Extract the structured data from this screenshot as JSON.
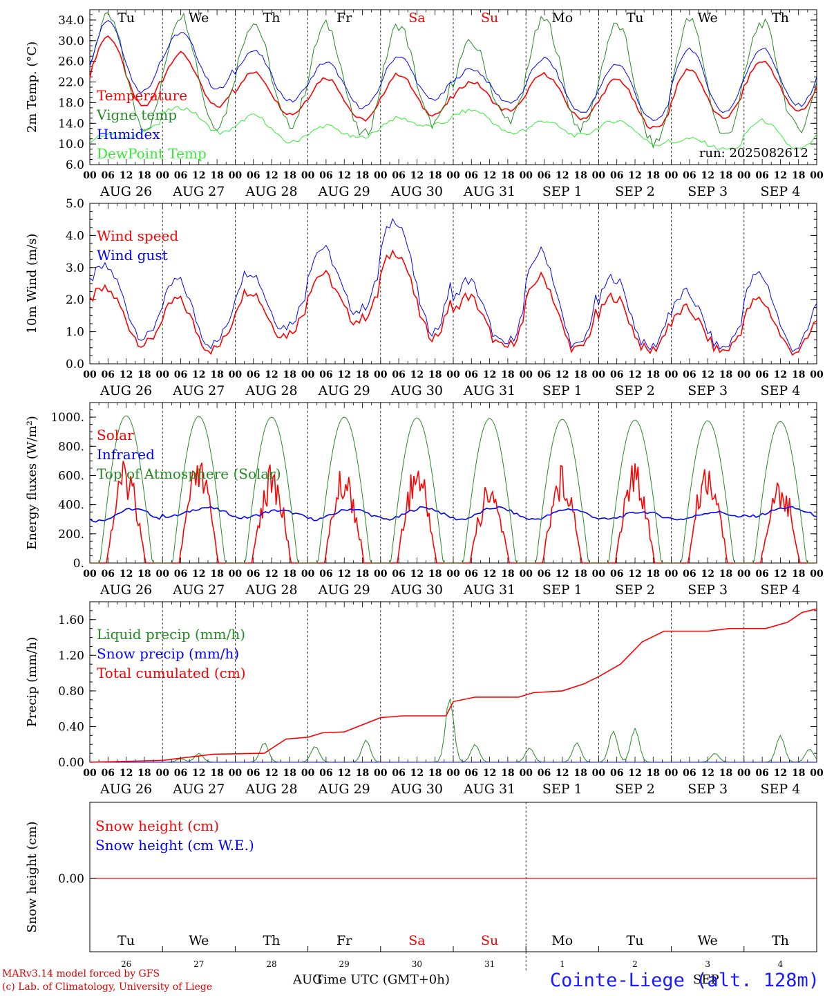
{
  "days": [
    {
      "dow": "Tu",
      "dom": "26",
      "label": "AUG 26",
      "weekend": false
    },
    {
      "dow": "We",
      "dom": "27",
      "label": "AUG 27",
      "weekend": false
    },
    {
      "dow": "Th",
      "dom": "28",
      "label": "AUG 28",
      "weekend": false
    },
    {
      "dow": "Fr",
      "dom": "29",
      "label": "AUG 29",
      "weekend": false
    },
    {
      "dow": "Sa",
      "dom": "30",
      "label": "AUG 30",
      "weekend": true
    },
    {
      "dow": "Su",
      "dom": "31",
      "label": "AUG 31",
      "weekend": true
    },
    {
      "dow": "Mo",
      "dom": "1",
      "label": "SEP  1",
      "weekend": false
    },
    {
      "dow": "Tu",
      "dom": "2",
      "label": "SEP  2",
      "weekend": false
    },
    {
      "dow": "We",
      "dom": "3",
      "label": "SEP  3",
      "weekend": false
    },
    {
      "dow": "Th",
      "dom": "4",
      "label": "SEP  4",
      "weekend": false
    }
  ],
  "hour_ticks": [
    "00",
    "06",
    "12",
    "18"
  ],
  "colors": {
    "red": "#ff0000",
    "green": "#228b22",
    "blue": "#0000ff",
    "lime": "#33ee33",
    "weekend": "#ff0000",
    "text": "#000000"
  },
  "footer": {
    "model_line": "MARv3.14 model forced by GFS",
    "copyright_line": "(c) Lab. of Climatology, University of Liege",
    "xlabel": "Time UTC (GMT+0h)",
    "month_aug": "AUG",
    "month_sep": "SEP",
    "station": "Cointe-Liege (alt. 128m)"
  },
  "chart_data": [
    {
      "id": "temp",
      "type": "line",
      "ylabel": "2m Temp. (°C)",
      "ylim": [
        6,
        36
      ],
      "yticks": [
        "6.0",
        "10.0",
        "14.0",
        "18.0",
        "22.0",
        "26.0",
        "30.0",
        "34.0"
      ],
      "ytick_values": [
        6,
        10,
        14,
        18,
        22,
        26,
        30,
        34
      ],
      "annotation": "run: 2025082612",
      "series": [
        {
          "name": "Temperature",
          "color": "#ff0000",
          "diurnal": {
            "min": [
              16.5,
              17.8,
              17.0,
              15.3,
              14.4,
              16.5,
              16.5,
              14.3,
              12.5,
              16.5
            ],
            "max": [
              30.8,
              27.5,
              23.8,
              22.8,
              23.5,
              22.0,
              23.5,
              22.5,
              24.5,
              26.0
            ]
          }
        },
        {
          "name": "Vigne temp",
          "color": "#228b22",
          "diurnal": {
            "min": [
              16.0,
              12.0,
              14.5,
              13.5,
              11.0,
              15.5,
              14.5,
              12.5,
              9.0,
              13.0
            ],
            "max": [
              34.5,
              35.0,
              33.5,
              33.0,
              33.0,
              29.5,
              34.0,
              33.0,
              34.0,
              33.5
            ]
          }
        },
        {
          "name": "Humidex",
          "color": "#0000ff",
          "diurnal": {
            "min": [
              17.0,
              22.0,
              20.0,
              17.5,
              17.0,
              19.5,
              17.5,
              15.5,
              14.0,
              17.5
            ],
            "max": [
              34.0,
              31.5,
              28.0,
              25.8,
              27.0,
              24.5,
              26.5,
              25.5,
              28.5,
              28.5
            ]
          }
        },
        {
          "name": "DewPoint Temp",
          "color": "#33ee33",
          "diurnal": {
            "min": [
              8.0,
              15.0,
              11.0,
              10.0,
              12.0,
              14.5,
              11.0,
              12.0,
              9.0,
              9.0
            ],
            "max": [
              12.0,
              17.0,
              15.5,
              13.5,
              15.0,
              16.5,
              14.5,
              14.5,
              11.0,
              14.5
            ]
          }
        }
      ]
    },
    {
      "id": "wind",
      "type": "line",
      "ylabel": "10m Wind (m/s)",
      "ylim": [
        0,
        5
      ],
      "yticks": [
        "0.0",
        "1.0",
        "2.0",
        "3.0",
        "4.0",
        "5.0"
      ],
      "ytick_values": [
        0,
        1,
        2,
        3,
        4,
        5
      ],
      "series": [
        {
          "name": "Wind speed",
          "color": "#ff0000",
          "diurnal": {
            "min": [
              1.4,
              0.2,
              0.6,
              1.1,
              1.5,
              0.5,
              0.5,
              0.4,
              0.4,
              0.4
            ],
            "max": [
              2.3,
              2.0,
              2.3,
              2.8,
              3.5,
              2.1,
              2.7,
              2.1,
              1.7,
              2.0
            ]
          }
        },
        {
          "name": "Wind gust",
          "color": "#0000ff",
          "diurnal": {
            "min": [
              1.8,
              0.3,
              0.8,
              1.4,
              1.8,
              0.6,
              0.6,
              0.5,
              0.5,
              0.5
            ],
            "max": [
              3.0,
              2.6,
              2.9,
              3.6,
              4.5,
              2.6,
              3.5,
              2.7,
              2.2,
              2.8
            ]
          }
        }
      ]
    },
    {
      "id": "flux",
      "type": "line",
      "ylabel": "Energy fluxes (W/m²)",
      "ylim": [
        0,
        1100
      ],
      "yticks": [
        "0.",
        "200.",
        "400.",
        "600.",
        "800.",
        "1000."
      ],
      "ytick_values": [
        0,
        200,
        400,
        600,
        800,
        1000
      ],
      "series": [
        {
          "name": "Solar",
          "color": "#ff0000",
          "daily_peak": [
            720,
            720,
            680,
            680,
            720,
            560,
            700,
            720,
            720,
            600
          ]
        },
        {
          "name": "Infrared",
          "color": "#0000ff",
          "daily_range": [
            [
              290,
              370
            ],
            [
              320,
              380
            ],
            [
              310,
              360
            ],
            [
              300,
              370
            ],
            [
              300,
              380
            ],
            [
              300,
              380
            ],
            [
              300,
              370
            ],
            [
              300,
              350
            ],
            [
              300,
              350
            ],
            [
              320,
              380
            ]
          ]
        },
        {
          "name": "Top of Atmosphere (Solar)",
          "color": "#228b22",
          "daily_peak": [
            1010,
            1005,
            1000,
            1000,
            995,
            990,
            985,
            980,
            975,
            970
          ]
        }
      ]
    },
    {
      "id": "precip",
      "type": "line",
      "ylabel": "Precip (mm/h)",
      "ylim": [
        0,
        1.8
      ],
      "yticks": [
        "0.00",
        "0.40",
        "0.80",
        "1.20",
        "1.60"
      ],
      "ytick_values": [
        0,
        0.4,
        0.8,
        1.2,
        1.6
      ],
      "series": [
        {
          "name": "Liquid precip (mm/h)",
          "color": "#228b22",
          "peaks": [
            [
              1.25,
              0.04
            ],
            [
              1.5,
              0.1
            ],
            [
              2.4,
              0.22
            ],
            [
              3.1,
              0.18
            ],
            [
              3.8,
              0.25
            ],
            [
              4.95,
              0.72
            ],
            [
              5.3,
              0.2
            ],
            [
              6.05,
              0.16
            ],
            [
              6.7,
              0.22
            ],
            [
              7.2,
              0.35
            ],
            [
              7.5,
              0.38
            ],
            [
              8.6,
              0.1
            ],
            [
              9.5,
              0.3
            ],
            [
              9.9,
              0.15
            ]
          ]
        },
        {
          "name": "Snow precip (mm/h)",
          "color": "#0000ff",
          "values": [
            0
          ]
        },
        {
          "name": "Total cumulated (cm)",
          "color": "#ff0000",
          "points": [
            [
              0,
              0
            ],
            [
              1,
              0.02
            ],
            [
              1.7,
              0.09
            ],
            [
              2.4,
              0.1
            ],
            [
              2.7,
              0.26
            ],
            [
              3.0,
              0.28
            ],
            [
              3.2,
              0.33
            ],
            [
              3.5,
              0.34
            ],
            [
              4.0,
              0.5
            ],
            [
              4.3,
              0.52
            ],
            [
              4.9,
              0.52
            ],
            [
              5.0,
              0.68
            ],
            [
              5.3,
              0.73
            ],
            [
              5.9,
              0.73
            ],
            [
              6.1,
              0.78
            ],
            [
              6.5,
              0.8
            ],
            [
              6.8,
              0.88
            ],
            [
              7.0,
              0.96
            ],
            [
              7.3,
              1.1
            ],
            [
              7.6,
              1.35
            ],
            [
              7.9,
              1.47
            ],
            [
              8.5,
              1.47
            ],
            [
              8.8,
              1.5
            ],
            [
              9.3,
              1.5
            ],
            [
              9.6,
              1.57
            ],
            [
              9.8,
              1.68
            ],
            [
              10.0,
              1.72
            ]
          ]
        }
      ]
    },
    {
      "id": "snow",
      "type": "line",
      "ylabel": "Snow height (cm)",
      "yticks": [
        "0.00"
      ],
      "series": [
        {
          "name": "Snow height (cm)",
          "color": "#ff0000",
          "values": [
            0
          ]
        },
        {
          "name": "Snow height (cm W.E.)",
          "color": "#0000ff",
          "values": [
            0
          ]
        }
      ]
    }
  ]
}
